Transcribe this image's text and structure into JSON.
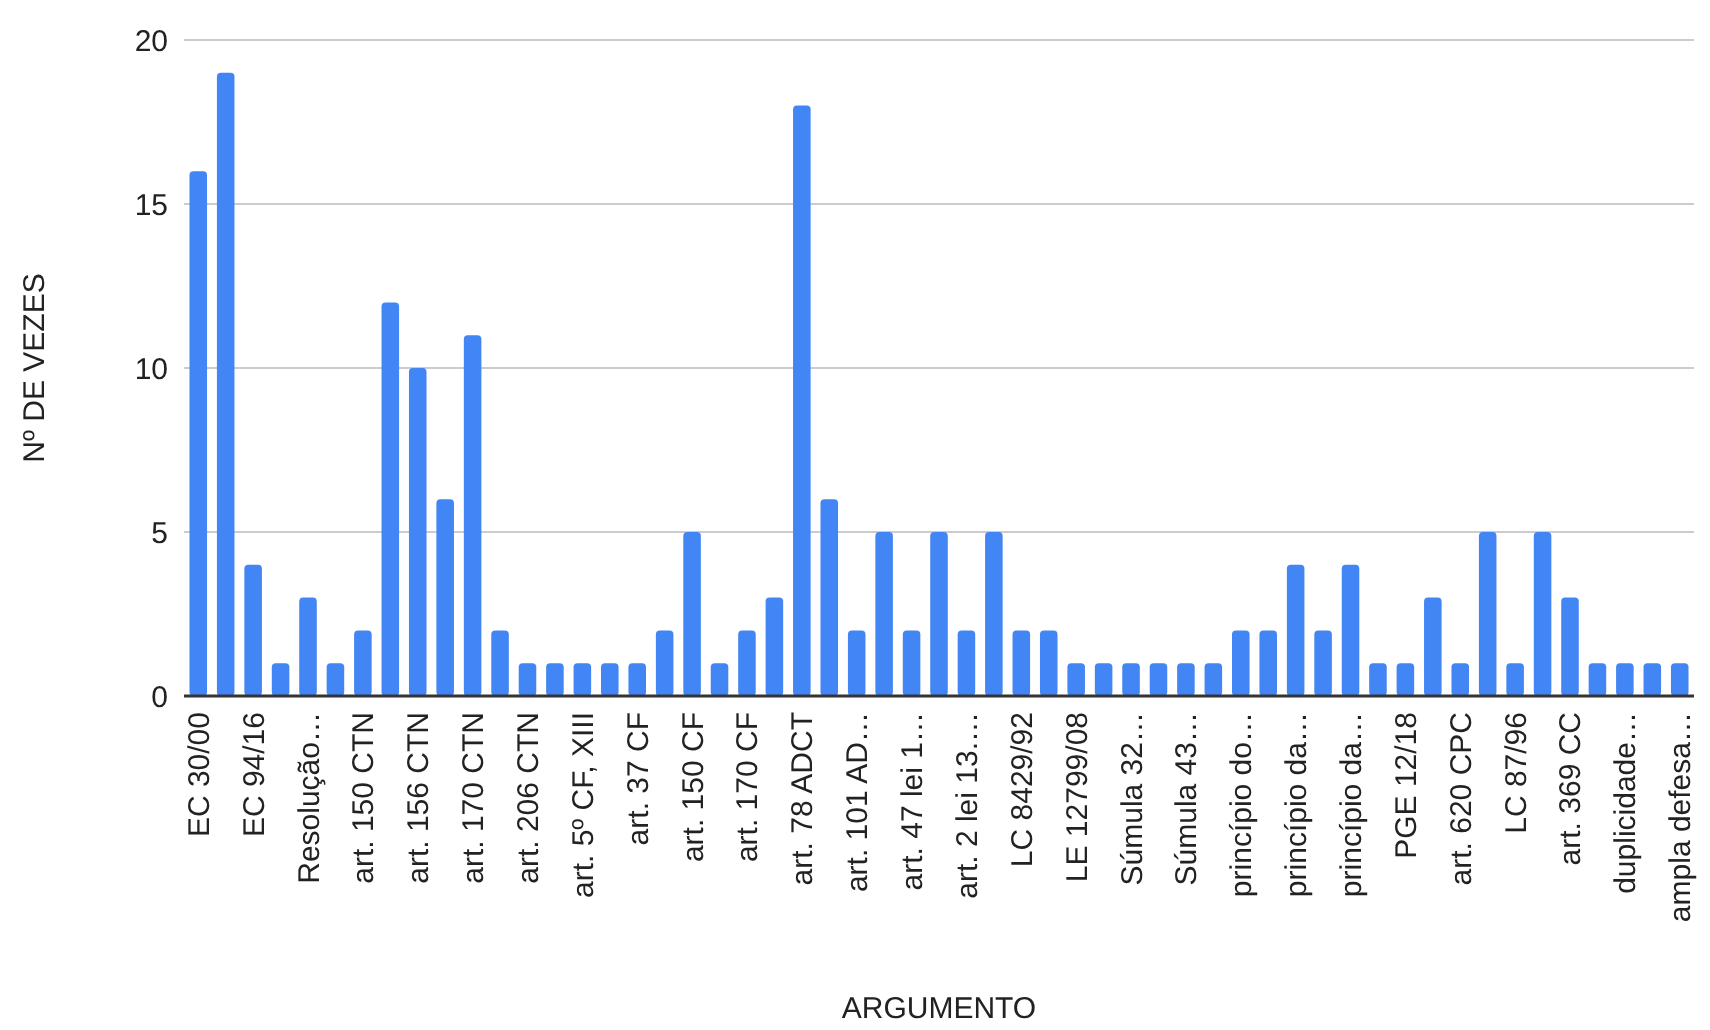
{
  "chart_data": {
    "type": "bar",
    "xlabel": "ARGUMENTO",
    "ylabel": "Nº DE VEZES",
    "categories": [
      "EC 30/00",
      null,
      "EC 94/16",
      null,
      "Resolução…",
      null,
      "art. 150 CTN",
      null,
      "art. 156 CTN",
      null,
      "art. 170 CTN",
      null,
      "art. 206 CTN",
      null,
      "art. 5º CF, XIII",
      null,
      "art. 37 CF",
      null,
      "art. 150 CF",
      null,
      "art. 170 CF",
      null,
      "art. 78 ADCT",
      null,
      "art. 101 AD…",
      null,
      "art. 47 lei 1…",
      null,
      "art. 2 lei 13.…",
      null,
      "LC 8429/92",
      null,
      "LE 12799/08",
      null,
      "Súmula 32…",
      null,
      "Súmula 43…",
      null,
      "princípio do…",
      null,
      "princípio da…",
      null,
      "princípio da…",
      null,
      "PGE 12/18",
      null,
      "art. 620 CPC",
      null,
      "LC 87/96",
      null,
      "art. 369 CC",
      null,
      "duplicidade…",
      null,
      "ampla defesa…"
    ],
    "values": [
      16,
      19,
      4,
      1,
      3,
      1,
      2,
      12,
      10,
      6,
      11,
      2,
      1,
      1,
      1,
      1,
      1,
      2,
      5,
      1,
      2,
      3,
      18,
      6,
      2,
      5,
      2,
      5,
      2,
      5,
      2,
      2,
      1,
      1,
      1,
      1,
      1,
      1,
      2,
      2,
      4,
      2,
      4,
      1,
      1,
      3,
      1,
      5,
      1,
      5,
      3,
      1,
      1,
      1,
      1
    ],
    "color": "#4285f4",
    "ylim": [
      0,
      20
    ],
    "yticks": [
      0,
      5,
      10,
      15,
      20
    ],
    "grid": "y"
  }
}
